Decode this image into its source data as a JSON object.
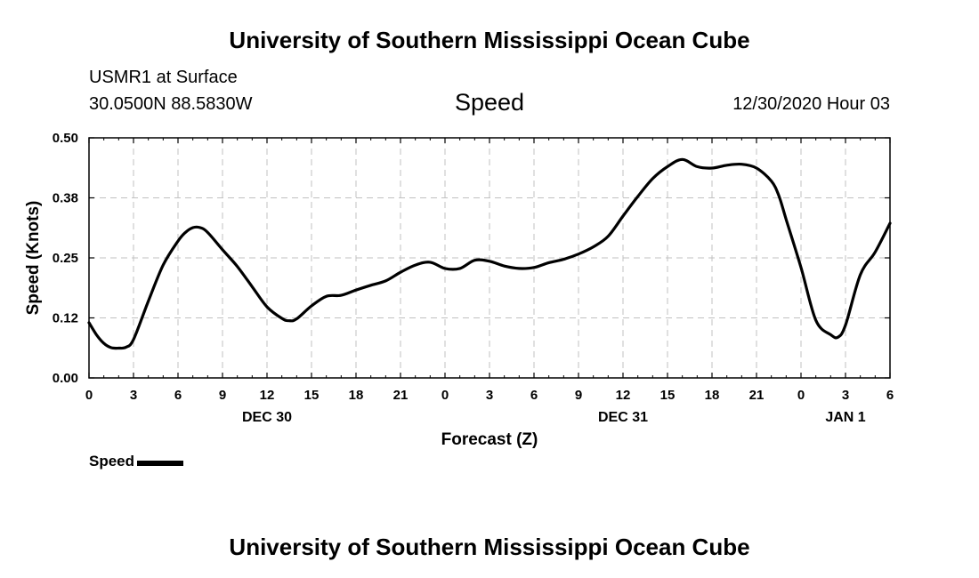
{
  "header": {
    "title": "University of Southern Mississippi Ocean Cube",
    "station": "USMR1 at Surface",
    "coordinates": "30.0500N 88.5830W",
    "variable": "Speed",
    "datetime": "12/30/2020 Hour 03"
  },
  "footer": {
    "title": "University of Southern Mississippi Ocean Cube"
  },
  "legend": {
    "label": "Speed",
    "color": "#000000"
  },
  "chart_data": {
    "type": "line",
    "title": "Speed",
    "xlabel": "Forecast (Z)",
    "ylabel": "Speed (Knots)",
    "xlim": [
      0,
      54
    ],
    "ylim": [
      0.0,
      0.5
    ],
    "grid": true,
    "x_ticks": [
      {
        "value": 0,
        "label": "0"
      },
      {
        "value": 3,
        "label": "3"
      },
      {
        "value": 6,
        "label": "6"
      },
      {
        "value": 9,
        "label": "9"
      },
      {
        "value": 12,
        "label": "12"
      },
      {
        "value": 15,
        "label": "15"
      },
      {
        "value": 18,
        "label": "18"
      },
      {
        "value": 21,
        "label": "21"
      },
      {
        "value": 24,
        "label": "0"
      },
      {
        "value": 27,
        "label": "3"
      },
      {
        "value": 30,
        "label": "6"
      },
      {
        "value": 33,
        "label": "9"
      },
      {
        "value": 36,
        "label": "12"
      },
      {
        "value": 39,
        "label": "15"
      },
      {
        "value": 42,
        "label": "18"
      },
      {
        "value": 45,
        "label": "21"
      },
      {
        "value": 48,
        "label": "0"
      },
      {
        "value": 51,
        "label": "3"
      },
      {
        "value": 54,
        "label": "6"
      }
    ],
    "y_ticks": [
      {
        "value": 0.0,
        "label": "0.00"
      },
      {
        "value": 0.125,
        "label": "0.12"
      },
      {
        "value": 0.25,
        "label": "0.25"
      },
      {
        "value": 0.375,
        "label": "0.38"
      },
      {
        "value": 0.5,
        "label": "0.50"
      }
    ],
    "day_labels": [
      {
        "value": 12,
        "label": "DEC 30"
      },
      {
        "value": 36,
        "label": "DEC 31"
      },
      {
        "value": 51,
        "label": "JAN 1"
      }
    ],
    "series": [
      {
        "name": "Speed",
        "color": "#000000",
        "x": [
          0,
          0.5,
          1,
          1.5,
          2,
          2.5,
          3,
          4,
          5,
          6,
          6.5,
          7,
          7.5,
          8,
          9,
          10,
          11,
          12,
          13,
          13.5,
          14,
          15,
          16,
          17,
          18,
          19,
          20,
          21,
          22,
          23,
          24,
          25,
          26,
          27,
          28,
          29,
          30,
          31,
          32,
          33,
          34,
          35,
          36,
          37,
          38,
          39,
          40,
          41,
          42,
          43,
          44,
          45,
          46,
          46.5,
          47,
          48,
          49,
          50,
          50.5,
          51,
          52,
          53,
          54
        ],
        "y": [
          0.115,
          0.09,
          0.072,
          0.063,
          0.062,
          0.064,
          0.08,
          0.16,
          0.235,
          0.285,
          0.303,
          0.313,
          0.313,
          0.303,
          0.267,
          0.232,
          0.19,
          0.148,
          0.124,
          0.119,
          0.123,
          0.15,
          0.17,
          0.172,
          0.183,
          0.193,
          0.202,
          0.22,
          0.235,
          0.241,
          0.228,
          0.228,
          0.245,
          0.243,
          0.233,
          0.228,
          0.23,
          0.24,
          0.247,
          0.258,
          0.273,
          0.295,
          0.337,
          0.378,
          0.415,
          0.44,
          0.455,
          0.44,
          0.437,
          0.443,
          0.445,
          0.437,
          0.41,
          0.38,
          0.33,
          0.23,
          0.12,
          0.09,
          0.085,
          0.11,
          0.215,
          0.262,
          0.322
        ]
      }
    ]
  }
}
